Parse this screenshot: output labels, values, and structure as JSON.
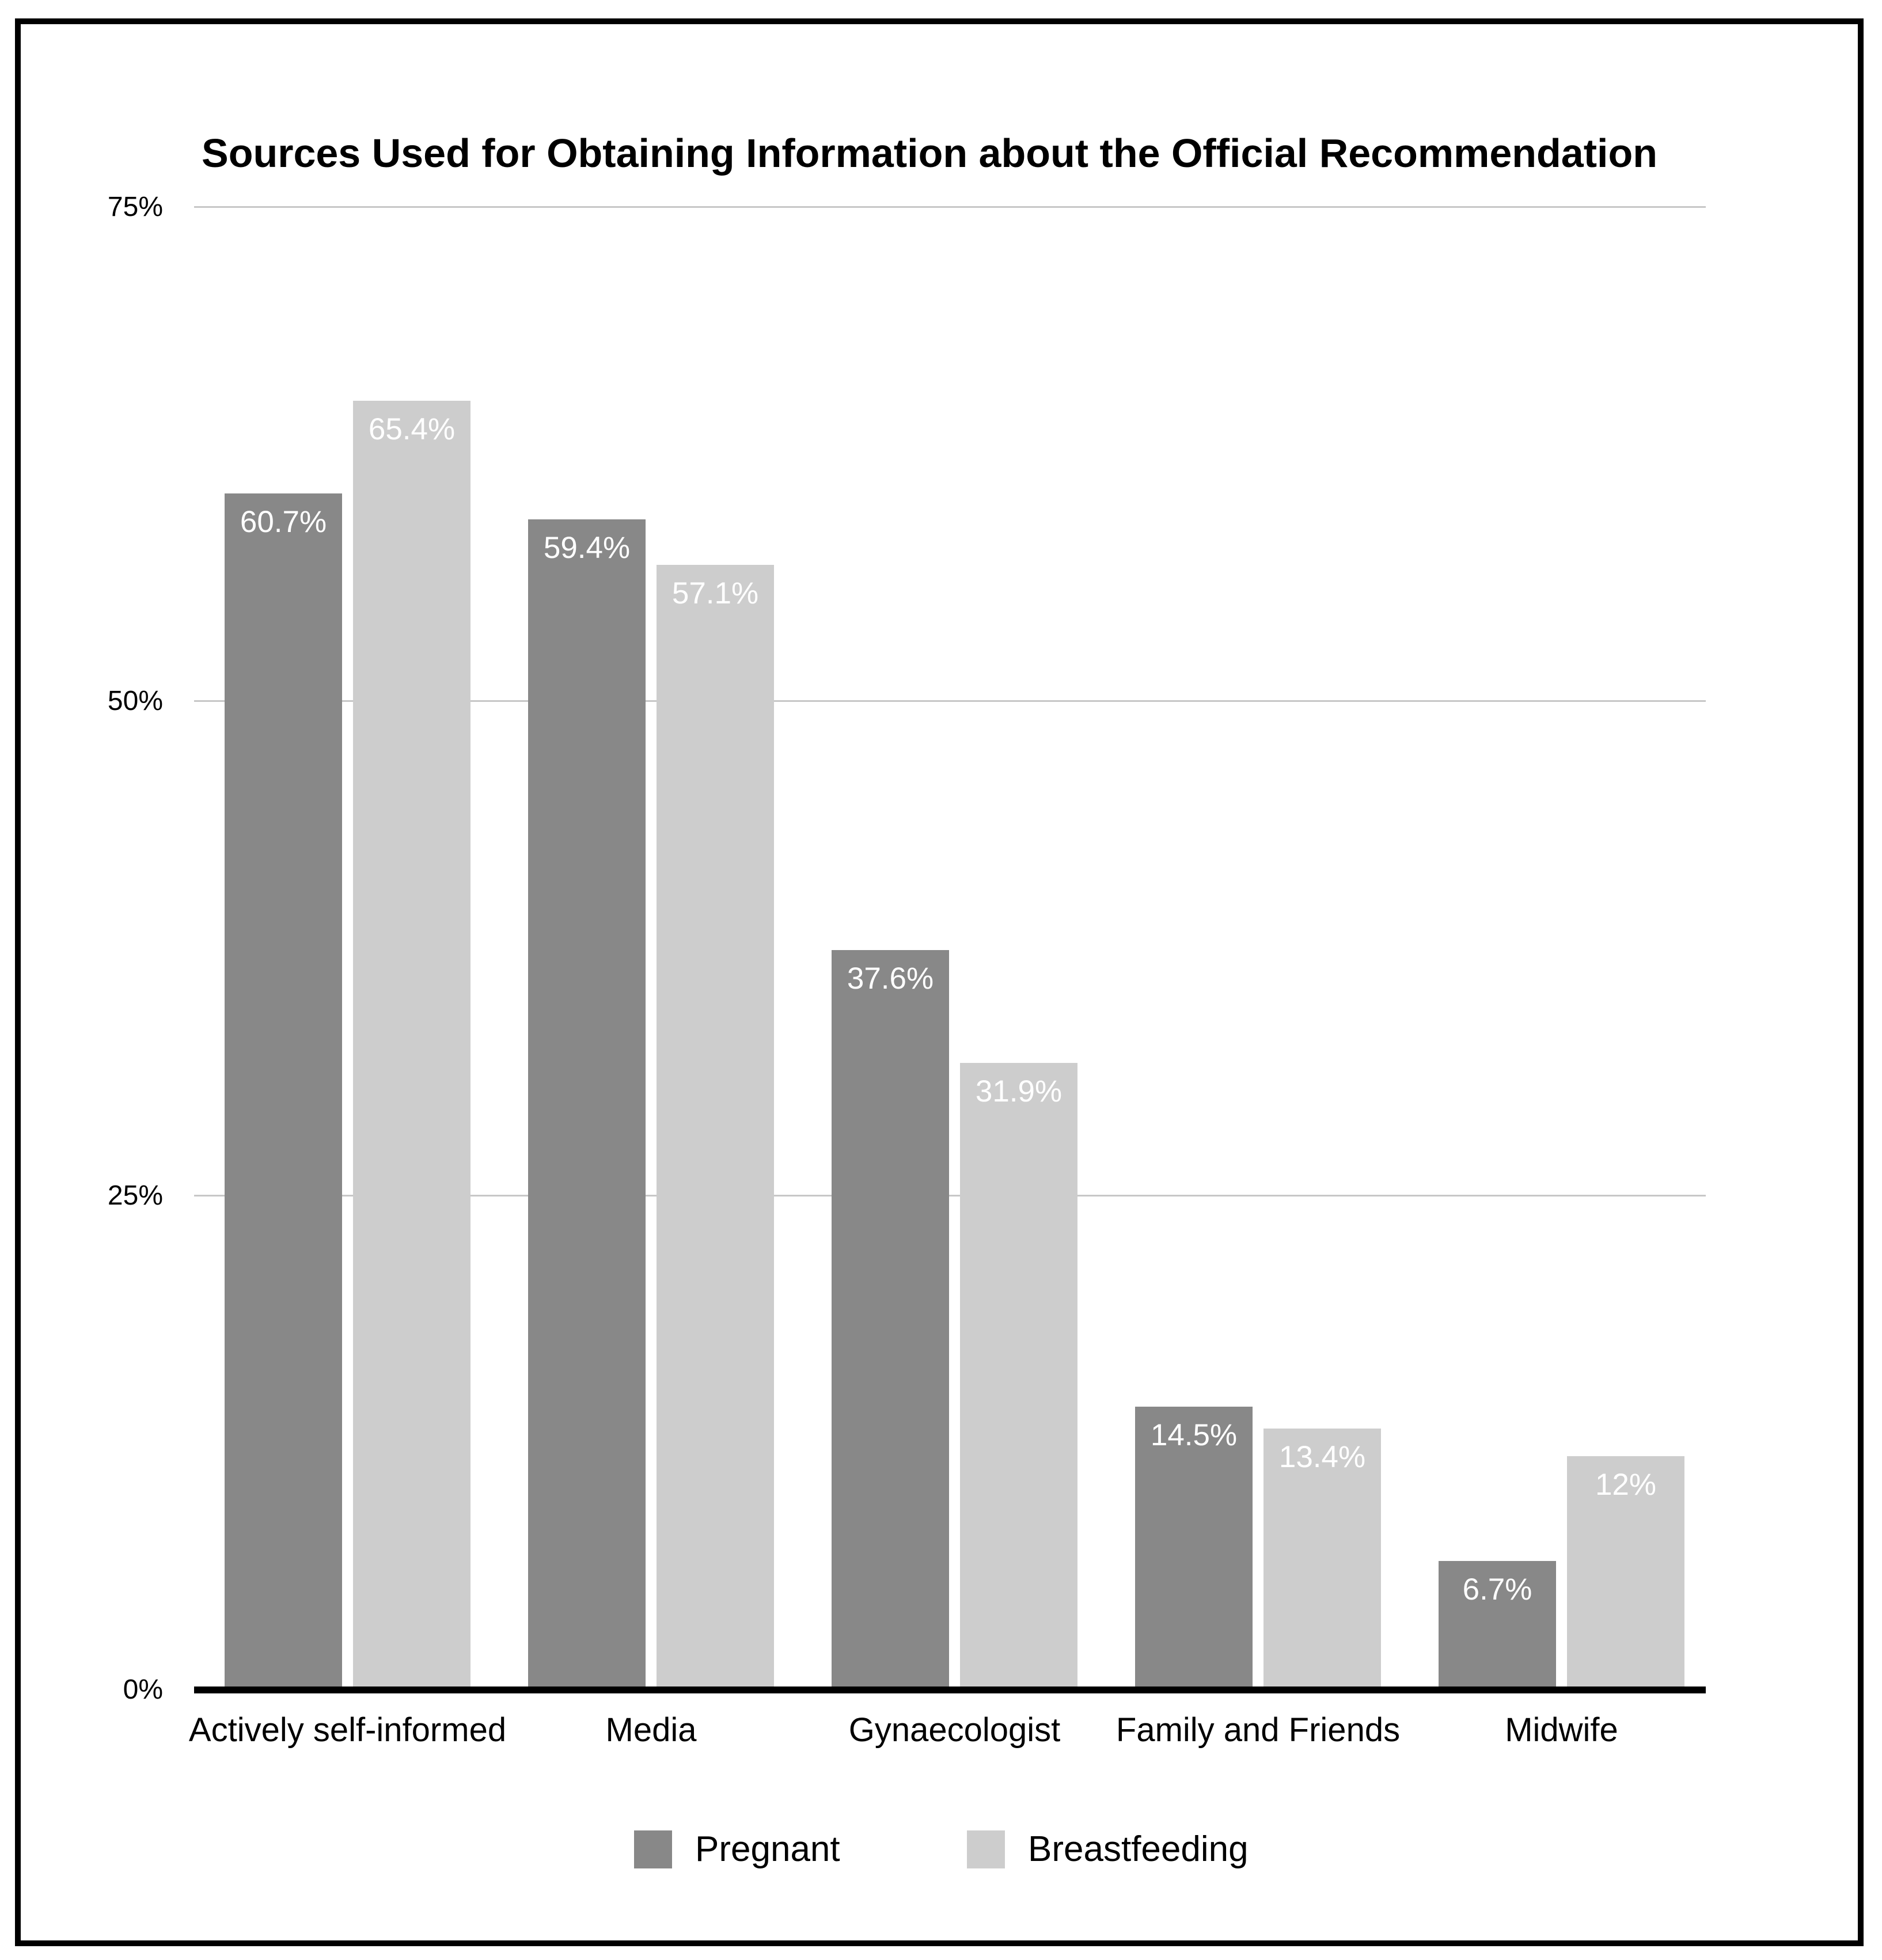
{
  "chart_data": {
    "type": "bar",
    "title": "Sources Used for Obtaining Information about the Official Recommendation",
    "categories": [
      "Actively self-informed",
      "Media",
      "Gynaecologist",
      "Family and Friends",
      "Midwife"
    ],
    "series": [
      {
        "name": "Pregnant",
        "color": "#888888",
        "values": [
          60.7,
          59.4,
          37.6,
          14.5,
          6.7
        ],
        "labels": [
          "60.7%",
          "59.4%",
          "37.6%",
          "14.5%",
          "6.7%"
        ]
      },
      {
        "name": "Breastfeeding",
        "color": "#cdcdcd",
        "values": [
          65.4,
          57.1,
          31.9,
          13.4,
          12
        ],
        "labels": [
          "65.4%",
          "57.1%",
          "31.9%",
          "13.4%",
          "12%"
        ]
      }
    ],
    "y_axis": {
      "max": 75,
      "gridlines": true,
      "ticks": [
        {
          "label": "0%",
          "value": 0
        },
        {
          "label": "25%",
          "value": 25
        },
        {
          "label": "50%",
          "value": 50
        },
        {
          "label": "75%",
          "value": 75
        }
      ]
    },
    "xlabel": "",
    "ylabel": "",
    "legend_position": "bottom",
    "value_label_color": "#ffffff",
    "gridline_color": "#c7c7c7",
    "axis_color": "#000000",
    "background_color": "#ffffff",
    "frame_border_color": "#000000"
  }
}
